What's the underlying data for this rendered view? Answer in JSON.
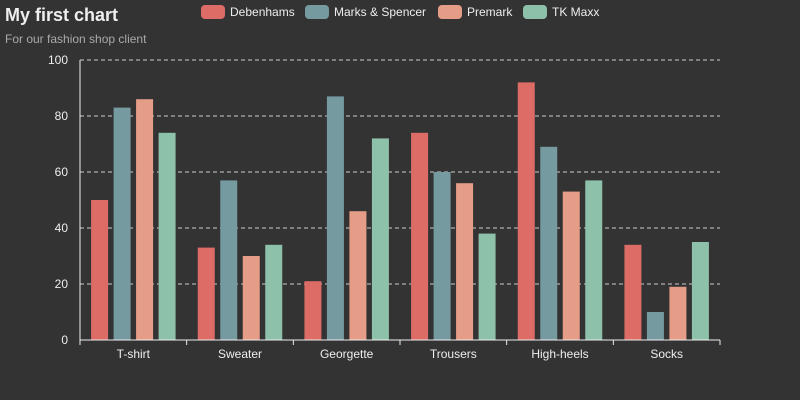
{
  "chart_data": {
    "type": "bar",
    "title": "My first chart",
    "subtitle": "For our fashion shop client",
    "categories": [
      "T-shirt",
      "Sweater",
      "Georgette",
      "Trousers",
      "High-heels",
      "Socks"
    ],
    "series": [
      {
        "name": "Debenhams",
        "color": "#dd6b66",
        "values": [
          50,
          33,
          21,
          74,
          92,
          34
        ]
      },
      {
        "name": "Marks & Spencer",
        "color": "#759aa0",
        "values": [
          83,
          57,
          87,
          60,
          69,
          10
        ]
      },
      {
        "name": "Premark",
        "color": "#e69d87",
        "values": [
          86,
          30,
          46,
          56,
          53,
          19
        ]
      },
      {
        "name": "TK Maxx",
        "color": "#8dc1a9",
        "values": [
          74,
          34,
          72,
          38,
          57,
          35
        ]
      }
    ],
    "ylim": [
      0,
      100
    ],
    "yticks": [
      0,
      20,
      40,
      60,
      80,
      100
    ],
    "grid": true,
    "legend_position": "top"
  }
}
